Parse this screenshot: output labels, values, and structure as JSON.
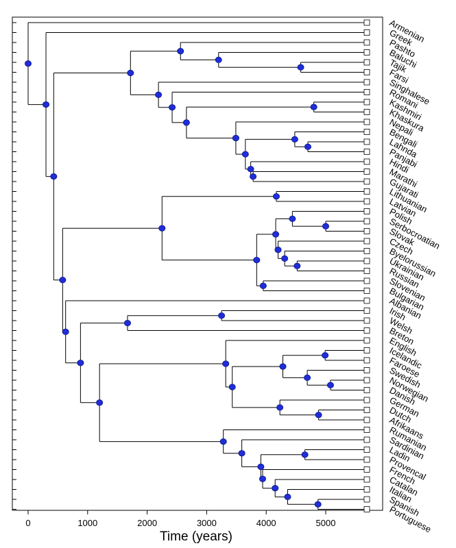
{
  "figure": {
    "xlabel": "Time (years)",
    "x_ticks": [
      0,
      1000,
      2000,
      3000,
      4000,
      5000
    ],
    "x_range": [
      -250,
      5950
    ],
    "colors": {
      "node": "#1f2ed8",
      "node_stroke": "#0b1380",
      "line": "#000000"
    }
  },
  "chart_data": {
    "type": "dendrogram",
    "xlabel": "Time (years)",
    "leaves": [
      "Armenian",
      "Greek",
      "Pashto",
      "Baluchi",
      "Tajik",
      "Farsi",
      "Singhalese",
      "Romani",
      "Kashmiri",
      "Khaskura",
      "Nepali",
      "Bengali",
      "Lahnda",
      "Panjabi",
      "Hindi",
      "Marathi",
      "Gujarati",
      "Lithuanian",
      "Latvian",
      "Polish",
      "Serbocroatian",
      "Slovak",
      "Czech",
      "Byelorussian",
      "Ukrainian",
      "Russian",
      "Slovenian",
      "Bulgarian",
      "Albanian",
      "Irish",
      "Welsh",
      "Breton",
      "English",
      "Icelandic",
      "Faroese",
      "Swedish",
      "Norwegian",
      "Danish",
      "German",
      "Dutch",
      "Afrikaans",
      "Rumanian",
      "Sardinian",
      "Ladin",
      "Provencal",
      "French",
      "Catalan",
      "Italian",
      "Spanish",
      "Portuguese"
    ],
    "tree": {
      "t": 0,
      "c": [
        {
          "l": "Armenian"
        },
        {
          "t": 300,
          "c": [
            {
              "l": "Greek"
            },
            {
              "t": 430,
              "c": [
                {
                  "t": 1720,
                  "c": [
                    {
                      "t": 2560,
                      "c": [
                        {
                          "l": "Pashto"
                        },
                        {
                          "t": 3200,
                          "c": [
                            {
                              "l": "Baluchi"
                            },
                            {
                              "t": 4580,
                              "c": [
                                {
                                  "l": "Tajik"
                                },
                                {
                                  "l": "Farsi"
                                }
                              ]
                            }
                          ]
                        }
                      ]
                    },
                    {
                      "t": 2190,
                      "c": [
                        {
                          "l": "Singhalese"
                        },
                        {
                          "t": 2420,
                          "c": [
                            {
                              "l": "Romani"
                            },
                            {
                              "t": 2660,
                              "c": [
                                {
                                  "t": 4800,
                                  "c": [
                                    {
                                      "l": "Kashmiri"
                                    },
                                    {
                                      "l": "Khaskura"
                                    }
                                  ]
                                },
                                {
                                  "t": 3490,
                                  "c": [
                                    {
                                      "l": "Nepali"
                                    },
                                    {
                                      "t": 3650,
                                      "c": [
                                        {
                                          "t": 4480,
                                          "c": [
                                            {
                                              "l": "Bengali"
                                            },
                                            {
                                              "t": 4700,
                                              "c": [
                                                {
                                                  "l": "Lahnda"
                                                },
                                                {
                                                  "l": "Panjabi"
                                                }
                                              ]
                                            }
                                          ]
                                        },
                                        {
                                          "t": 3740,
                                          "c": [
                                            {
                                              "l": "Hindi"
                                            },
                                            {
                                              "t": 3780,
                                              "c": [
                                                {
                                                  "l": "Marathi"
                                                },
                                                {
                                                  "l": "Gujarati"
                                                }
                                              ]
                                            }
                                          ]
                                        }
                                      ]
                                    }
                                  ]
                                }
                              ]
                            }
                          ]
                        }
                      ]
                    }
                  ]
                },
                {
                  "t": 580,
                  "c": [
                    {
                      "t": 2250,
                      "c": [
                        {
                          "t": 4170,
                          "c": [
                            {
                              "l": "Lithuanian"
                            },
                            {
                              "l": "Latvian"
                            }
                          ]
                        },
                        {
                          "t": 3840,
                          "c": [
                            {
                              "t": 4160,
                              "c": [
                                {
                                  "t": 4440,
                                  "c": [
                                    {
                                      "l": "Polish"
                                    },
                                    {
                                      "t": 5000,
                                      "c": [
                                        {
                                          "l": "Serbocroatian"
                                        },
                                        {
                                          "l": "Slovak"
                                        }
                                      ]
                                    }
                                  ]
                                },
                                {
                                  "t": 4200,
                                  "c": [
                                    {
                                      "l": "Czech"
                                    },
                                    {
                                      "t": 4310,
                                      "c": [
                                        {
                                          "l": "Byelorussian"
                                        },
                                        {
                                          "t": 4520,
                                          "c": [
                                            {
                                              "l": "Ukrainian"
                                            },
                                            {
                                              "l": "Russian"
                                            }
                                          ]
                                        }
                                      ]
                                    }
                                  ]
                                }
                              ]
                            },
                            {
                              "t": 3950,
                              "c": [
                                {
                                  "l": "Slovenian"
                                },
                                {
                                  "l": "Bulgarian"
                                }
                              ]
                            }
                          ]
                        }
                      ]
                    },
                    {
                      "t": 630,
                      "c": [
                        {
                          "l": "Albanian"
                        },
                        {
                          "t": 880,
                          "c": [
                            {
                              "t": 1670,
                              "c": [
                                {
                                  "t": 3250,
                                  "c": [
                                    {
                                      "l": "Irish"
                                    },
                                    {
                                      "l": "Welsh"
                                    }
                                  ]
                                },
                                {
                                  "l": "Breton"
                                }
                              ]
                            },
                            {
                              "t": 1200,
                              "c": [
                                {
                                  "t": 3320,
                                  "c": [
                                    {
                                      "l": "English"
                                    },
                                    {
                                      "t": 3430,
                                      "c": [
                                        {
                                          "t": 4280,
                                          "c": [
                                            {
                                              "t": 4990,
                                              "c": [
                                                {
                                                  "l": "Icelandic"
                                                },
                                                {
                                                  "l": "Faroese"
                                                }
                                              ]
                                            },
                                            {
                                              "t": 4690,
                                              "c": [
                                                {
                                                  "l": "Swedish"
                                                },
                                                {
                                                  "t": 5080,
                                                  "c": [
                                                    {
                                                      "l": "Norwegian"
                                                    },
                                                    {
                                                      "l": "Danish"
                                                    }
                                                  ]
                                                }
                                              ]
                                            }
                                          ]
                                        },
                                        {
                                          "t": 4230,
                                          "c": [
                                            {
                                              "l": "German"
                                            },
                                            {
                                              "t": 4880,
                                              "c": [
                                                {
                                                  "l": "Dutch"
                                                },
                                                {
                                                  "l": "Afrikaans"
                                                }
                                              ]
                                            }
                                          ]
                                        }
                                      ]
                                    }
                                  ]
                                },
                                {
                                  "t": 3280,
                                  "c": [
                                    {
                                      "l": "Rumanian"
                                    },
                                    {
                                      "t": 3590,
                                      "c": [
                                        {
                                          "l": "Sardinian"
                                        },
                                        {
                                          "t": 3910,
                                          "c": [
                                            {
                                              "t": 4650,
                                              "c": [
                                                {
                                                  "l": "Ladin"
                                                },
                                                {
                                                  "l": "Provencal"
                                                }
                                              ]
                                            },
                                            {
                                              "t": 3940,
                                              "c": [
                                                {
                                                  "l": "French"
                                                },
                                                {
                                                  "t": 4150,
                                                  "c": [
                                                    {
                                                      "l": "Catalan"
                                                    },
                                                    {
                                                      "t": 4360,
                                                      "c": [
                                                        {
                                                          "l": "Italian"
                                                        },
                                                        {
                                                          "t": 4870,
                                                          "c": [
                                                            {
                                                              "l": "Spanish"
                                                            },
                                                            {
                                                              "l": "Portuguese"
                                                            }
                                                          ]
                                                        }
                                                      ]
                                                    }
                                                  ]
                                                }
                                              ]
                                            }
                                          ]
                                        }
                                      ]
                                    }
                                  ]
                                }
                              ]
                            }
                          ]
                        }
                      ]
                    }
                  ]
                }
              ]
            }
          ]
        }
      ]
    }
  }
}
